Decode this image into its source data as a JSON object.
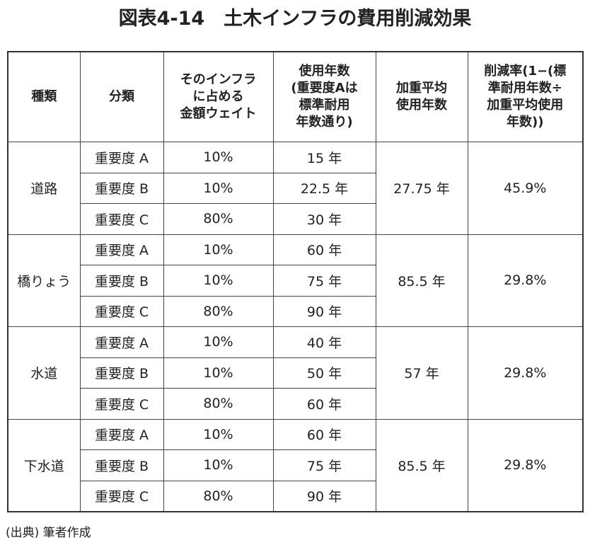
{
  "title": "図表4-14　土木インフラの費用削減効果",
  "table": {
    "headers": [
      [
        "種類"
      ],
      [
        "分類"
      ],
      [
        "そのインフラ",
        "に占める",
        "金額ウェイト"
      ],
      [
        "使用年数",
        "(重要度Aは",
        "標準耐用",
        "年数通り)"
      ],
      [
        "加重平均",
        "使用年数"
      ],
      [
        "削減率(1−(標",
        "準耐用年数÷",
        "加重平均使用",
        "年数))"
      ]
    ],
    "groups": [
      {
        "type": "道路",
        "rows": [
          [
            "重要度 A",
            "10%",
            "15 年"
          ],
          [
            "重要度 B",
            "10%",
            "22.5 年"
          ],
          [
            "重要度 C",
            "80%",
            "30 年"
          ]
        ],
        "average": "27.75 年",
        "reduction": "45.9%"
      },
      {
        "type": "橋りょう",
        "rows": [
          [
            "重要度 A",
            "10%",
            "60 年"
          ],
          [
            "重要度 B",
            "10%",
            "75 年"
          ],
          [
            "重要度 C",
            "80%",
            "90 年"
          ]
        ],
        "average": "85.5 年",
        "reduction": "29.8%"
      },
      {
        "type": "水道",
        "rows": [
          [
            "重要度 A",
            "10%",
            "40 年"
          ],
          [
            "重要度 B",
            "10%",
            "50 年"
          ],
          [
            "重要度 C",
            "80%",
            "60 年"
          ]
        ],
        "average": "57 年",
        "reduction": "29.8%"
      },
      {
        "type": "下水道",
        "rows": [
          [
            "重要度 A",
            "10%",
            "60 年"
          ],
          [
            "重要度 B",
            "10%",
            "75 年"
          ],
          [
            "重要度 C",
            "80%",
            "90 年"
          ]
        ],
        "average": "85.5 年",
        "reduction": "29.8%"
      }
    ]
  },
  "source": "(出典) 筆者作成"
}
